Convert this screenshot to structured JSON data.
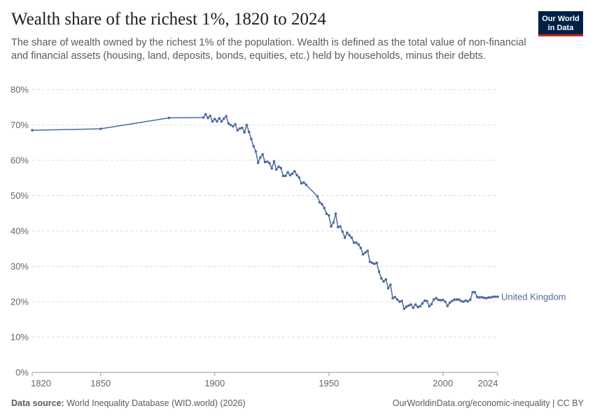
{
  "header": {
    "title": "Wealth share of the richest 1%, 1820 to 2024",
    "subtitle": "The share of wealth owned by the richest 1% of the population. Wealth is defined as the total value of non-financial and financial assets (housing, land, deposits, bonds, equities, etc.) held by households, minus their debts."
  },
  "logo": {
    "line1": "Our World",
    "line2": "in Data"
  },
  "footer": {
    "source_label": "Data source:",
    "source_text": "World Inequality Database (WID.world) (2026)",
    "right_text": "OurWorldinData.org/economic-inequality | CC BY"
  },
  "colors": {
    "series": "#4c6a9c",
    "grid": "#dddddd",
    "axis": "#999999"
  },
  "chart_data": {
    "type": "line",
    "title": "Wealth share of the richest 1%, 1820 to 2024",
    "xlabel": "",
    "ylabel": "",
    "xlim": [
      1820,
      2024
    ],
    "ylim": [
      0,
      80
    ],
    "x_ticks": [
      1820,
      1850,
      1900,
      1950,
      2000,
      2024
    ],
    "y_ticks": [
      0,
      10,
      20,
      30,
      40,
      50,
      60,
      70,
      80
    ],
    "y_tick_labels": [
      "0%",
      "10%",
      "20%",
      "30%",
      "40%",
      "50%",
      "60%",
      "70%",
      "80%"
    ],
    "grid": true,
    "series": [
      {
        "name": "United Kingdom",
        "x": [
          1820,
          1850,
          1880,
          1895,
          1896,
          1897,
          1898,
          1899,
          1900,
          1901,
          1902,
          1903,
          1904,
          1905,
          1906,
          1907,
          1908,
          1909,
          1910,
          1911,
          1912,
          1913,
          1914,
          1915,
          1916,
          1917,
          1918,
          1919,
          1920,
          1921,
          1922,
          1923,
          1924,
          1925,
          1926,
          1927,
          1928,
          1929,
          1930,
          1931,
          1932,
          1933,
          1934,
          1935,
          1936,
          1937,
          1938,
          1939,
          1940,
          1945,
          1946,
          1947,
          1948,
          1949,
          1950,
          1951,
          1952,
          1953,
          1954,
          1955,
          1956,
          1957,
          1958,
          1959,
          1960,
          1961,
          1962,
          1963,
          1964,
          1965,
          1966,
          1967,
          1968,
          1969,
          1970,
          1971,
          1972,
          1973,
          1974,
          1975,
          1976,
          1977,
          1978,
          1979,
          1980,
          1981,
          1982,
          1983,
          1984,
          1985,
          1986,
          1987,
          1988,
          1989,
          1990,
          1991,
          1992,
          1993,
          1994,
          1995,
          1996,
          1997,
          1998,
          1999,
          2000,
          2001,
          2002,
          2003,
          2004,
          2005,
          2006,
          2007,
          2008,
          2009,
          2010,
          2011,
          2012,
          2013,
          2014,
          2015,
          2016,
          2017,
          2018,
          2019,
          2020,
          2021,
          2022,
          2023,
          2024
        ],
        "values": [
          68.5,
          68.9,
          72.0,
          72.1,
          73.0,
          72.0,
          72.6,
          71.0,
          71.7,
          71.0,
          71.9,
          71.0,
          71.8,
          72.5,
          70.4,
          70.0,
          69.6,
          70.2,
          68.5,
          69.0,
          69.2,
          67.9,
          70.0,
          68.0,
          66.0,
          64.0,
          62.5,
          59.3,
          60.8,
          61.7,
          59.5,
          59.6,
          59.2,
          57.7,
          59.7,
          57.4,
          58.2,
          57.8,
          55.6,
          55.6,
          56.6,
          55.8,
          56.2,
          56.9,
          55.8,
          55.1,
          53.5,
          53.7,
          53.1,
          49.8,
          48.1,
          47.6,
          46.5,
          44.9,
          44.4,
          41.3,
          42.4,
          44.9,
          41.1,
          41.3,
          39.8,
          38.1,
          39.5,
          38.8,
          38.1,
          36.7,
          36.7,
          36.2,
          35.2,
          33.4,
          33.9,
          34.4,
          31.3,
          31.0,
          30.7,
          31.0,
          28.5,
          26.6,
          25.7,
          26.3,
          23.8,
          24.8,
          21.0,
          21.3,
          20.6,
          20.0,
          20.2,
          18.0,
          18.6,
          18.9,
          19.2,
          18.3,
          19.2,
          18.5,
          18.7,
          19.5,
          20.3,
          20.2,
          18.7,
          19.3,
          20.6,
          21.0,
          20.5,
          20.4,
          20.5,
          20.0,
          18.8,
          19.7,
          20.2,
          20.6,
          20.6,
          20.6,
          20.2,
          20.0,
          20.3,
          20.1,
          20.6,
          22.7,
          22.7,
          21.3,
          21.2,
          21.3,
          21.1,
          21.0,
          21.2,
          21.2,
          21.4,
          21.4,
          21.4
        ]
      }
    ]
  }
}
